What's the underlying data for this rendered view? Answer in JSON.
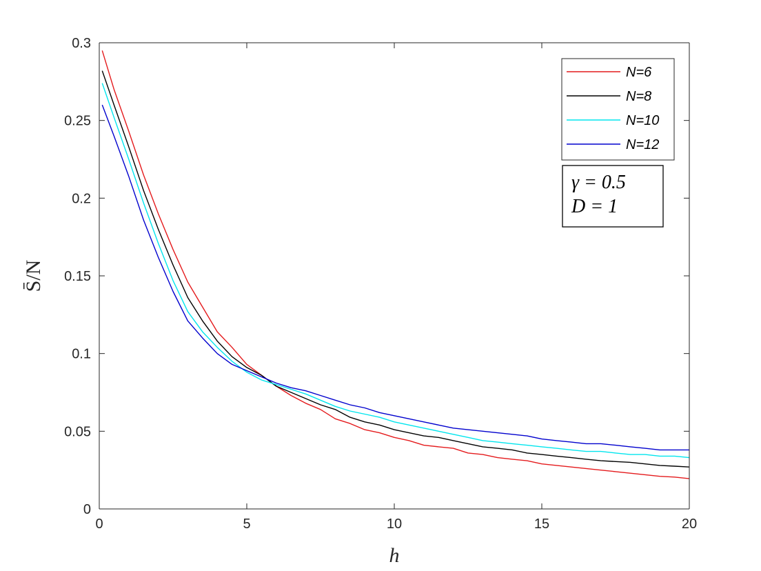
{
  "chart_data": {
    "type": "line",
    "title": "",
    "xlabel": "h",
    "ylabel": "S̄/N",
    "xlim": [
      0,
      20
    ],
    "ylim": [
      0,
      0.3
    ],
    "xticks": [
      0,
      5,
      10,
      15,
      20
    ],
    "xtick_labels": [
      "0",
      "5",
      "10",
      "15",
      "20"
    ],
    "yticks": [
      0,
      0.05,
      0.1,
      0.15,
      0.2,
      0.25,
      0.3
    ],
    "ytick_labels": [
      "0",
      "0.05",
      "0.1",
      "0.15",
      "0.2",
      "0.25",
      "0.3"
    ],
    "grid": false,
    "legend_position": "top-right",
    "annotation": [
      "γ = 0.5",
      "D = 1"
    ],
    "series": [
      {
        "name": "N=6",
        "color": "#e41a1c",
        "x": [
          0.1,
          0.5,
          1,
          1.5,
          2,
          2.5,
          3,
          3.5,
          4,
          4.5,
          5,
          5.5,
          6,
          6.5,
          7,
          7.5,
          8,
          8.5,
          9,
          9.5,
          10,
          10.5,
          11,
          11.5,
          12,
          12.5,
          13,
          13.5,
          14,
          14.5,
          15,
          15.5,
          16,
          16.5,
          17,
          17.5,
          18,
          18.5,
          19,
          19.5,
          20
        ],
        "y": [
          0.295,
          0.27,
          0.243,
          0.215,
          0.19,
          0.167,
          0.146,
          0.13,
          0.114,
          0.104,
          0.093,
          0.086,
          0.079,
          0.073,
          0.068,
          0.064,
          0.058,
          0.055,
          0.051,
          0.049,
          0.046,
          0.044,
          0.041,
          0.04,
          0.039,
          0.036,
          0.035,
          0.033,
          0.032,
          0.031,
          0.029,
          0.028,
          0.027,
          0.026,
          0.025,
          0.024,
          0.023,
          0.022,
          0.021,
          0.0205,
          0.0195
        ]
      },
      {
        "name": "N=8",
        "color": "#000000",
        "x": [
          0.1,
          0.5,
          1,
          1.5,
          2,
          2.5,
          3,
          3.5,
          4,
          4.5,
          5,
          5.5,
          6,
          6.5,
          7,
          7.5,
          8,
          8.5,
          9,
          9.5,
          10,
          10.5,
          11,
          11.5,
          12,
          12.5,
          13,
          13.5,
          14,
          14.5,
          15,
          15.5,
          16,
          16.5,
          17,
          17.5,
          18,
          18.5,
          19,
          19.5,
          20
        ],
        "y": [
          0.282,
          0.26,
          0.233,
          0.205,
          0.18,
          0.157,
          0.136,
          0.121,
          0.108,
          0.098,
          0.091,
          0.086,
          0.079,
          0.075,
          0.071,
          0.067,
          0.064,
          0.059,
          0.056,
          0.054,
          0.051,
          0.049,
          0.047,
          0.046,
          0.044,
          0.042,
          0.04,
          0.039,
          0.038,
          0.036,
          0.035,
          0.034,
          0.033,
          0.032,
          0.031,
          0.0305,
          0.03,
          0.029,
          0.028,
          0.0275,
          0.027
        ]
      },
      {
        "name": "N=10",
        "color": "#00e5ee",
        "x": [
          0.1,
          0.5,
          1,
          1.5,
          2,
          2.5,
          3,
          3.5,
          4,
          4.5,
          5,
          5.5,
          6,
          6.5,
          7,
          7.5,
          8,
          8.5,
          9,
          9.5,
          10,
          10.5,
          11,
          11.5,
          12,
          12.5,
          13,
          13.5,
          14,
          14.5,
          15,
          15.5,
          16,
          16.5,
          17,
          17.5,
          18,
          18.5,
          19,
          19.5,
          20
        ],
        "y": [
          0.274,
          0.252,
          0.225,
          0.197,
          0.171,
          0.147,
          0.127,
          0.114,
          0.104,
          0.095,
          0.088,
          0.083,
          0.08,
          0.077,
          0.074,
          0.07,
          0.066,
          0.063,
          0.061,
          0.059,
          0.056,
          0.054,
          0.052,
          0.05,
          0.048,
          0.046,
          0.044,
          0.043,
          0.042,
          0.041,
          0.04,
          0.039,
          0.038,
          0.037,
          0.037,
          0.036,
          0.035,
          0.035,
          0.034,
          0.034,
          0.033
        ]
      },
      {
        "name": "N=12",
        "color": "#0000cd",
        "x": [
          0.1,
          0.5,
          1,
          1.5,
          2,
          2.5,
          3,
          3.5,
          4,
          4.5,
          5,
          5.5,
          6,
          6.5,
          7,
          7.5,
          8,
          8.5,
          9,
          9.5,
          10,
          10.5,
          11,
          11.5,
          12,
          12.5,
          13,
          13.5,
          14,
          14.5,
          15,
          15.5,
          16,
          16.5,
          17,
          17.5,
          18,
          18.5,
          19,
          19.5,
          20
        ],
        "y": [
          0.26,
          0.24,
          0.214,
          0.186,
          0.162,
          0.14,
          0.121,
          0.11,
          0.1,
          0.093,
          0.089,
          0.085,
          0.081,
          0.078,
          0.076,
          0.073,
          0.07,
          0.067,
          0.065,
          0.062,
          0.06,
          0.058,
          0.056,
          0.054,
          0.052,
          0.051,
          0.05,
          0.049,
          0.048,
          0.047,
          0.045,
          0.044,
          0.043,
          0.042,
          0.042,
          0.041,
          0.04,
          0.039,
          0.038,
          0.038,
          0.038
        ]
      }
    ]
  }
}
